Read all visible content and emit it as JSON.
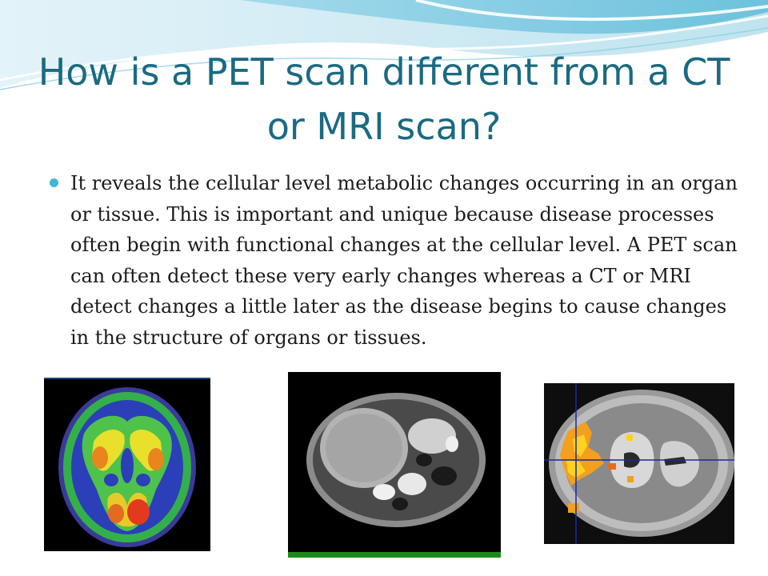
{
  "slide": {
    "title": "How is a PET scan different from a CT or MRI scan?",
    "bullets": [
      "It reveals the cellular level metabolic changes occurring in an organ or tissue. This is important and unique because disease processes often begin with functional changes at the cellular level. A PET scan can often detect these very early changes whereas a CT or MRI detect changes a little later as the disease begins to cause changes in the structure of organs or tissues."
    ]
  },
  "images": {
    "pet": "PET brain scan (color)",
    "ct": "CT abdominal scan",
    "mri": "MRI brain scan with activation overlay"
  },
  "colors": {
    "title": "#1a6a82",
    "bullet": "#3fb6d6",
    "wave_light": "#cdeaf4",
    "wave_mid": "#7fcde6",
    "ct_bar": "#1b8a1b"
  }
}
